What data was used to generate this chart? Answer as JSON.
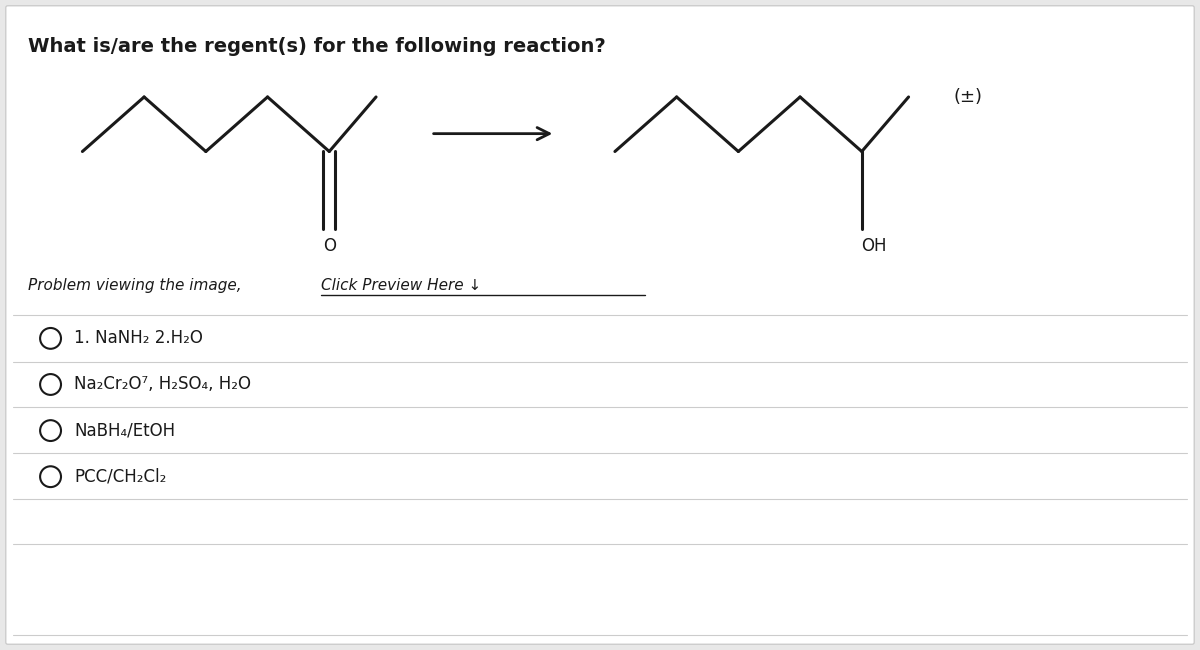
{
  "title": "What is/are the regent(s) for the following reaction?",
  "title_fontsize": 14,
  "background_color": "#e8e8e8",
  "card_color": "#ffffff",
  "options": [
    "1. NaNH₂ 2.H₂O",
    "Na₂Cr₂O⁷, H₂SO₄, H₂O",
    "NaBH₄/EtOH",
    "PCC/CH₂Cl₂"
  ],
  "plus_minus": "(±)",
  "oh_label": "OH",
  "o_label": "O",
  "line_color": "#1a1a1a",
  "text_color": "#1a1a1a",
  "arrow_color": "#1a1a1a",
  "divider_color": "#cccccc",
  "problem_text_plain": "Problem viewing the image, ",
  "problem_text_link": "Click Preview Here ↓"
}
